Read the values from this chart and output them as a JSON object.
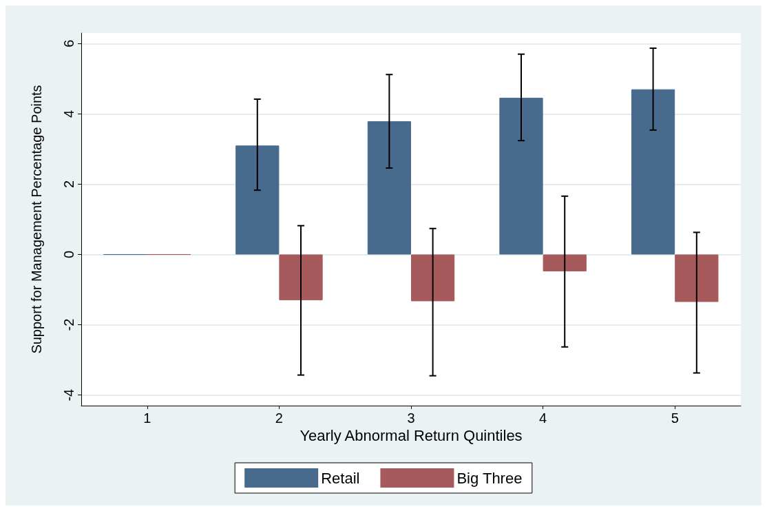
{
  "chart_data": {
    "type": "bar",
    "xlabel": "Yearly Abnormal Return Quintiles",
    "ylabel": "Support for Management Percentage Points",
    "categories": [
      "1",
      "2",
      "3",
      "4",
      "5"
    ],
    "series": [
      {
        "name": "Retail",
        "color": "#486a8c",
        "values": [
          0,
          3.1,
          3.79,
          4.46,
          4.7
        ],
        "errors": [
          null,
          [
            1.83,
            4.42
          ],
          [
            2.46,
            5.12
          ],
          [
            3.24,
            5.7
          ],
          [
            3.54,
            5.87
          ]
        ]
      },
      {
        "name": "Big Three",
        "color": "#a65a5c",
        "values": [
          0,
          -1.3,
          -1.33,
          -0.48,
          -1.35
        ],
        "errors": [
          null,
          [
            -3.43,
            0.82
          ],
          [
            -3.45,
            0.74
          ],
          [
            -2.63,
            1.66
          ],
          [
            -3.37,
            0.63
          ]
        ]
      }
    ],
    "ylim": [
      -4.3,
      6.3
    ],
    "yticks": [
      -4,
      -2,
      0,
      2,
      4,
      6
    ],
    "grid": "y",
    "legend": "bottom"
  }
}
